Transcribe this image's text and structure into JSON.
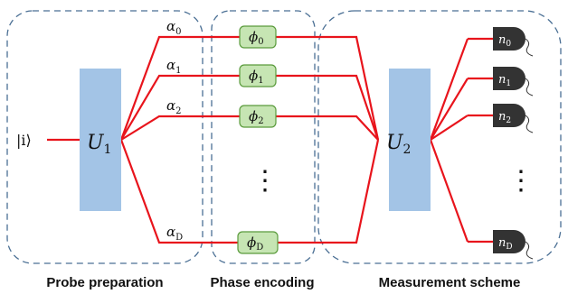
{
  "input_state": "|i⟩",
  "unitaries": {
    "first": {
      "symbol": "U",
      "subscript": "1"
    },
    "second": {
      "symbol": "U",
      "subscript": "2"
    }
  },
  "modes": [
    {
      "amp": "α",
      "amp_sub": "0",
      "phase": "ϕ",
      "phase_sub": "0",
      "det": "n",
      "det_sub": "0"
    },
    {
      "amp": "α",
      "amp_sub": "1",
      "phase": "ϕ",
      "phase_sub": "1",
      "det": "n",
      "det_sub": "1"
    },
    {
      "amp": "α",
      "amp_sub": "2",
      "phase": "ϕ",
      "phase_sub": "2",
      "det": "n",
      "det_sub": "2"
    },
    {
      "amp": "α",
      "amp_sub": "D",
      "phase": "ϕ",
      "phase_sub": "D",
      "det": "n",
      "det_sub": "D"
    }
  ],
  "ellipsis": "⋮",
  "captions": {
    "probe": "Probe preparation",
    "phase": "Phase encoding",
    "measure": "Measurement scheme"
  },
  "colors": {
    "line": "#e8141c",
    "unitary_fill": "#a3c4e6",
    "phase_fill": "#c6e5b3",
    "phase_stroke": "#5a9b3c",
    "detector_fill": "#333333",
    "dashed_box": "#4a6f94"
  }
}
